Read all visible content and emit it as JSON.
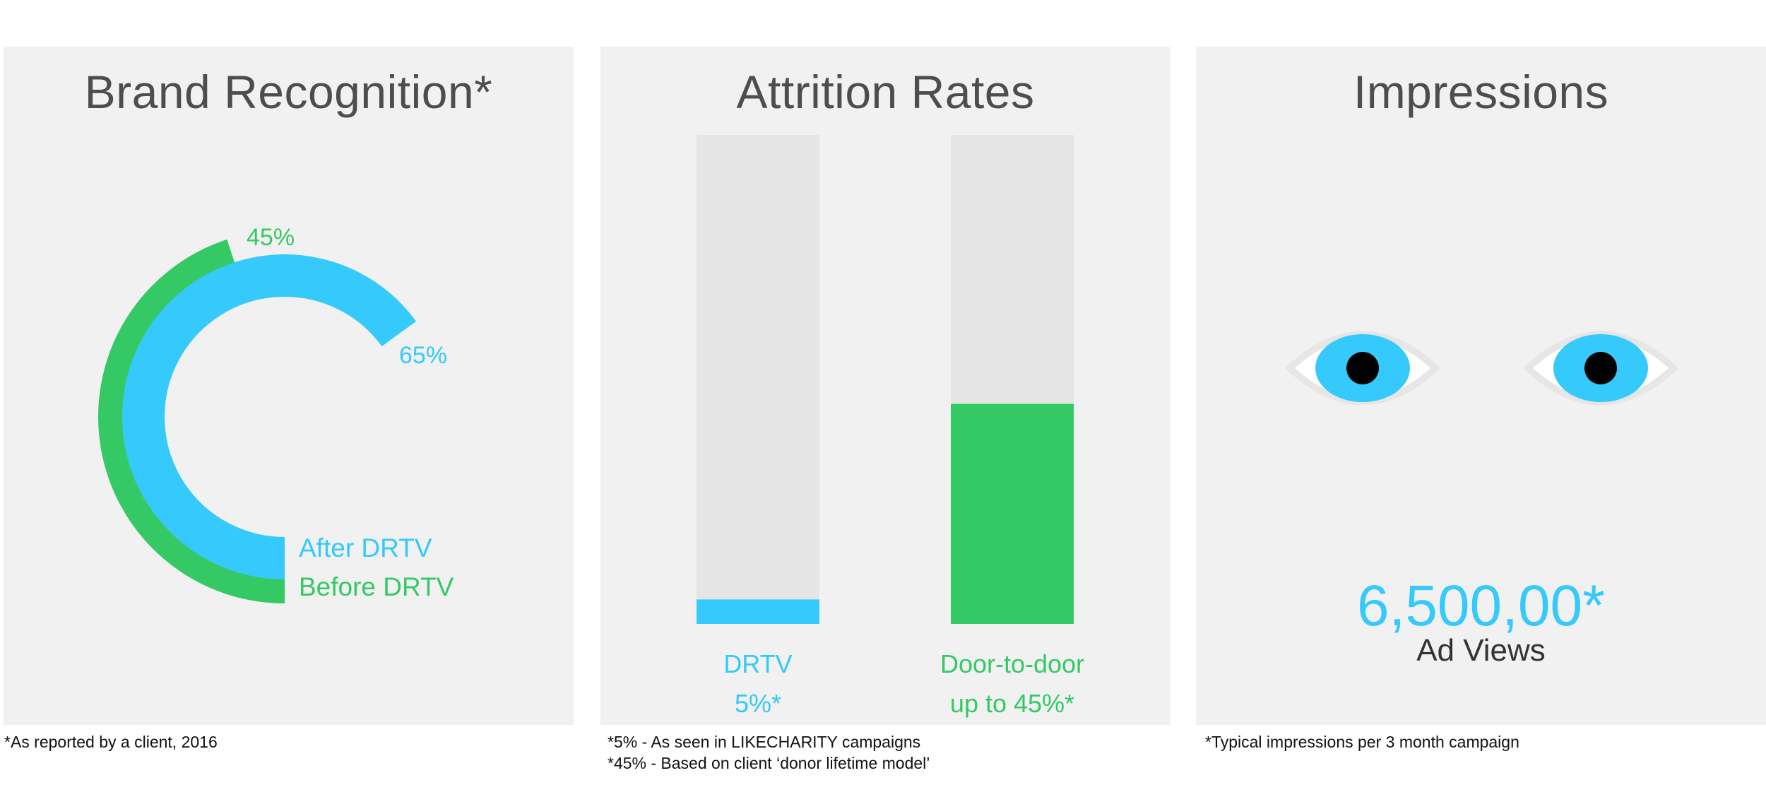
{
  "colors": {
    "green": "#35c966",
    "blue": "#35c9fc",
    "track": "#e5e5e5",
    "panel": "#f1f1f1",
    "title": "#4d4d4d"
  },
  "panels": {
    "brand": {
      "title": "Brand Recognition*",
      "footnote": "*As reported by a client, 2016"
    },
    "attrition": {
      "title": "Attrition Rates",
      "footnotes": [
        "*5% - As seen in LIKECHARITY campaigns",
        "*45% - Based on client ‘donor lifetime model’"
      ],
      "bars": [
        {
          "name": "DRTV",
          "value_label": "5%*"
        },
        {
          "name": "Door-to-door",
          "value_label": "up to 45%*"
        }
      ]
    },
    "impressions": {
      "title": "Impressions",
      "value": "6,500,00*",
      "label": "Ad Views",
      "footnote": "*Typical impressions per 3 month campaign",
      "icons": [
        "eye-icon",
        "eye-icon"
      ]
    }
  },
  "chart_data": [
    {
      "type": "radial-bar",
      "title": "Brand Recognition*",
      "unit": "%",
      "max": 100,
      "series": [
        {
          "name": "Before DRTV",
          "value": 45,
          "label": "45%",
          "color": "#35c966"
        },
        {
          "name": "After DRTV",
          "value": 65,
          "label": "65%",
          "color": "#35c9fc"
        }
      ]
    },
    {
      "type": "bar",
      "title": "Attrition Rates",
      "categories": [
        "DRTV",
        "Door-to-door"
      ],
      "values": [
        5,
        45
      ],
      "labels": [
        "5%*",
        "up to 45%*"
      ],
      "colors": [
        "#35c9fc",
        "#35c966"
      ],
      "ylim": [
        0,
        100
      ],
      "unit": "%"
    }
  ]
}
